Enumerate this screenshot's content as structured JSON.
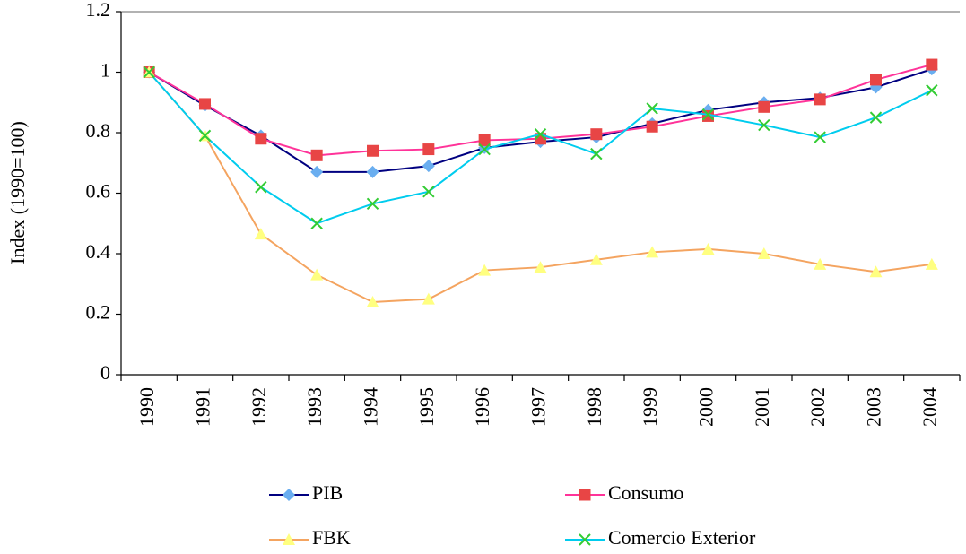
{
  "chart_data": {
    "type": "line",
    "y_label": "Index (1990=100)",
    "categories": [
      "1990",
      "1991",
      "1992",
      "1993",
      "1994",
      "1995",
      "1996",
      "1997",
      "1998",
      "1999",
      "2000",
      "2001",
      "2002",
      "2003",
      "2004"
    ],
    "series": [
      {
        "name": "PIB",
        "color": "#000080",
        "marker_color": "#6aaef0",
        "marker": "diamond",
        "values": [
          1.0,
          0.89,
          0.79,
          0.67,
          0.67,
          0.69,
          0.75,
          0.77,
          0.785,
          0.83,
          0.875,
          0.9,
          0.915,
          0.95,
          1.01
        ]
      },
      {
        "name": "Consumo",
        "color": "#ff3399",
        "marker_color": "#e84545",
        "marker": "square",
        "values": [
          1.0,
          0.895,
          0.78,
          0.725,
          0.74,
          0.745,
          0.775,
          0.78,
          0.795,
          0.82,
          0.855,
          0.885,
          0.91,
          0.975,
          1.025
        ]
      },
      {
        "name": "FBK",
        "color": "#f4a460",
        "marker_color": "#ffff80",
        "marker": "triangle",
        "values": [
          1.0,
          0.79,
          0.465,
          0.33,
          0.24,
          0.25,
          0.345,
          0.355,
          0.38,
          0.405,
          0.415,
          0.4,
          0.365,
          0.34,
          0.365
        ]
      },
      {
        "name": "Comercio Exterior",
        "color": "#00ccee",
        "marker_color": "#33cc33",
        "marker": "x",
        "values": [
          1.0,
          0.79,
          0.62,
          0.5,
          0.565,
          0.605,
          0.745,
          0.795,
          0.73,
          0.88,
          0.86,
          0.825,
          0.785,
          0.85,
          0.94
        ]
      }
    ],
    "ylim": [
      0,
      1.2
    ],
    "yticks": [
      0,
      0.2,
      0.4,
      0.6,
      0.8,
      1,
      1.2
    ],
    "grid": false
  }
}
